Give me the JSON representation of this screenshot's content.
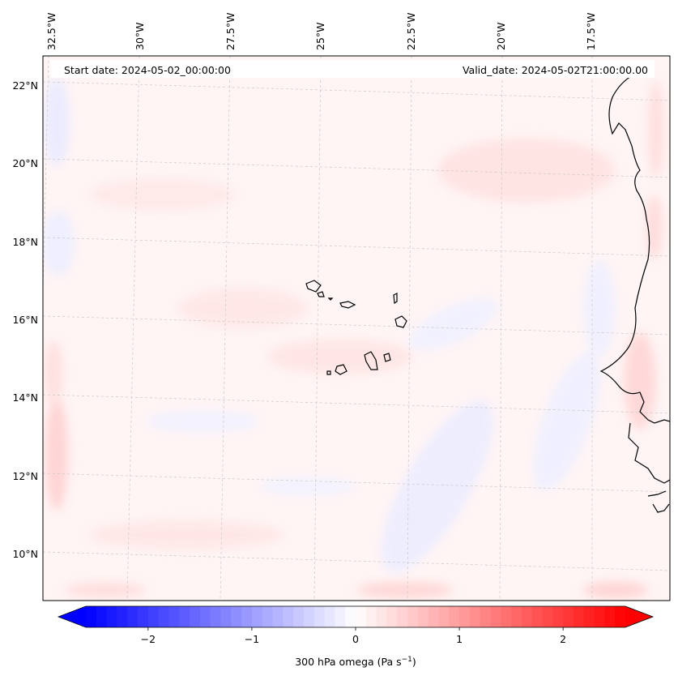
{
  "map": {
    "start_date": "Start date: 2024-05-02_00:00:00",
    "valid_date": "Valid_date: 2024-05-02T21:00:00.00",
    "lon_labels": [
      "32.5°W",
      "30°W",
      "27.5°W",
      "25°W",
      "22.5°W",
      "20°W",
      "17.5°W"
    ],
    "lat_labels": [
      "22°N",
      "20°N",
      "18°N",
      "16°N",
      "14°N",
      "12°N",
      "10°N"
    ],
    "features": [
      "Cape Verde islands",
      "West African coastline"
    ]
  },
  "colorbar": {
    "label": "300 hPa omega (Pa s",
    "label_sup": "−1",
    "label_close": ")",
    "ticks": [
      "−2",
      "−1",
      "0",
      "1",
      "2"
    ],
    "tick_values": [
      -2,
      -1,
      0,
      1,
      2
    ],
    "range": [
      -2.6,
      2.6
    ],
    "colormap": "bwr",
    "color_min": "#0000ff",
    "color_mid": "#ffffff",
    "color_max": "#ff0000"
  }
}
